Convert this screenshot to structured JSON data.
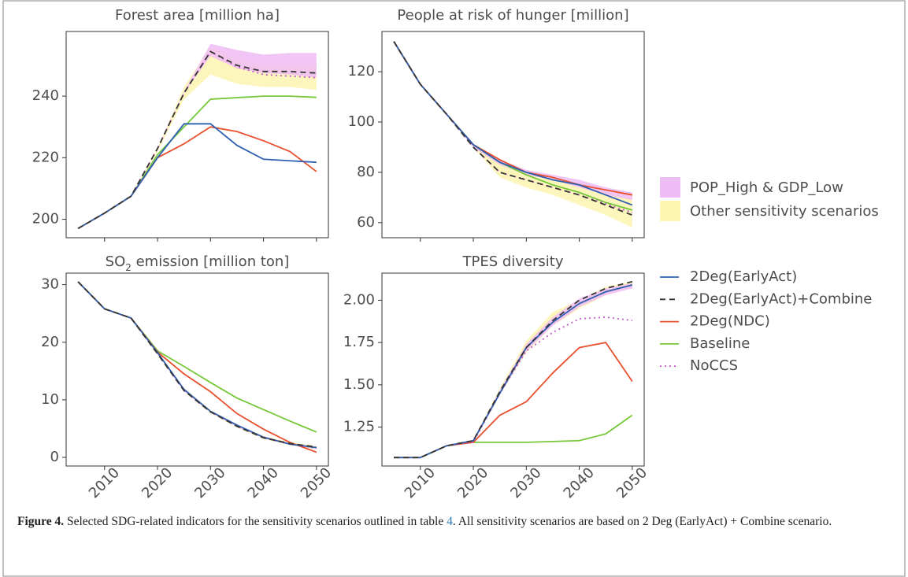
{
  "chart_data": [
    {
      "type": "line",
      "title": "Forest area [million ha]",
      "x": [
        2005,
        2010,
        2015,
        2020,
        2025,
        2030,
        2035,
        2040,
        2045,
        2050
      ],
      "xlim": [
        2002.75,
        2052.25
      ],
      "xticks": [
        2010,
        2020,
        2030,
        2040,
        2050
      ],
      "ylim": [
        194,
        261
      ],
      "yticks": [
        200,
        220,
        240
      ],
      "bands": [
        {
          "lower": [
            197,
            202,
            207.5,
            223,
            241,
            253,
            249,
            247.5,
            247,
            246
          ],
          "upper": [
            197,
            202,
            207.5,
            223,
            241.5,
            257,
            255,
            253.5,
            254,
            254
          ]
        },
        {
          "lower": [
            197,
            202,
            207.5,
            222,
            239,
            247,
            244,
            243,
            243,
            242
          ],
          "upper": [
            197,
            202,
            207.5,
            223,
            243,
            256,
            252,
            250,
            250,
            250
          ]
        }
      ],
      "series": [
        {
          "values": [
            197,
            202,
            207.5,
            220,
            231,
            231,
            224,
            219.5,
            219,
            218.5
          ]
        },
        {
          "values": [
            197,
            202,
            207.5,
            223,
            241,
            254.5,
            250,
            248,
            248,
            247.5
          ]
        },
        {
          "values": [
            197,
            202,
            207.5,
            220,
            224.5,
            230,
            228.5,
            225.5,
            222,
            215.5
          ]
        },
        {
          "values": [
            197,
            202,
            207.5,
            221,
            230,
            239,
            239.5,
            240,
            240,
            239.6
          ]
        },
        {
          "values": [
            197,
            202,
            207.5,
            223,
            241,
            254.5,
            249.5,
            247,
            246.5,
            246
          ]
        }
      ]
    },
    {
      "type": "line",
      "title": "People at risk of hunger [million]",
      "x": [
        2005,
        2010,
        2015,
        2020,
        2025,
        2030,
        2035,
        2040,
        2045,
        2050
      ],
      "xlim": [
        2002.75,
        2052.25
      ],
      "xticks": [
        2010,
        2020,
        2030,
        2040,
        2050
      ],
      "ylim": [
        54,
        136
      ],
      "yticks": [
        60,
        80,
        100,
        120
      ],
      "bands": [
        {
          "lower": [
            132,
            115,
            103,
            90,
            83,
            79,
            77,
            74,
            71,
            69
          ],
          "upper": [
            132,
            115,
            103,
            91,
            85,
            81,
            79,
            77,
            74,
            72
          ]
        },
        {
          "lower": [
            132,
            115,
            103,
            90,
            78,
            74,
            71,
            67,
            63,
            58
          ],
          "upper": [
            132,
            115,
            103,
            91,
            84,
            80,
            78,
            75,
            72,
            70
          ]
        }
      ],
      "series": [
        {
          "values": [
            132,
            115,
            103,
            91,
            84,
            80,
            77,
            75,
            71,
            67
          ]
        },
        {
          "values": [
            132,
            115,
            103,
            90,
            80,
            77,
            74,
            71,
            67,
            63
          ]
        },
        {
          "values": [
            132,
            115,
            103,
            91,
            85,
            80,
            78,
            75,
            73,
            71
          ]
        },
        {
          "values": [
            132,
            115,
            103,
            91,
            84,
            79,
            75,
            72,
            68,
            65
          ]
        },
        {
          "values": [
            132,
            115,
            103,
            90,
            80,
            77,
            74,
            71,
            67.5,
            64
          ]
        }
      ]
    },
    {
      "type": "line",
      "title": [
        {
          "text": "SO"
        },
        {
          "text": "2",
          "sub": true
        },
        {
          "text": " emission [million ton]"
        }
      ],
      "x": [
        2005,
        2010,
        2015,
        2020,
        2025,
        2030,
        2035,
        2040,
        2045,
        2050
      ],
      "xlim": [
        2002.75,
        2052.25
      ],
      "xticks": [
        2010,
        2020,
        2030,
        2040,
        2050
      ],
      "ylim": [
        -1.5,
        32
      ],
      "yticks": [
        0,
        10,
        20,
        30
      ],
      "bands": [
        {
          "lower": [
            30.5,
            25.8,
            24.2,
            17.9,
            11.5,
            7.8,
            5.3,
            3.3,
            2.2,
            1.5
          ],
          "upper": [
            30.5,
            25.8,
            24.2,
            18.2,
            11.9,
            8.1,
            5.6,
            3.6,
            2.5,
            1.9
          ]
        },
        {
          "lower": [
            30.5,
            25.8,
            24.2,
            17.8,
            11.4,
            7.7,
            5.2,
            3.2,
            2.1,
            1.4
          ],
          "upper": [
            30.5,
            25.8,
            24.2,
            18.2,
            12.0,
            8.2,
            5.7,
            3.7,
            2.6,
            2.0
          ]
        }
      ],
      "series": [
        {
          "values": [
            30.5,
            25.8,
            24.2,
            18.2,
            11.8,
            8.0,
            5.6,
            3.5,
            2.3,
            1.7
          ]
        },
        {
          "values": [
            30.5,
            25.8,
            24.2,
            18.0,
            11.6,
            7.9,
            5.4,
            3.4,
            2.4,
            1.8
          ]
        },
        {
          "values": [
            30.5,
            25.8,
            24.2,
            18.3,
            14.5,
            11.4,
            7.6,
            4.9,
            2.6,
            0.9
          ]
        },
        {
          "values": [
            30.5,
            25.8,
            24.2,
            18.5,
            15.8,
            13.0,
            10.3,
            8.3,
            6.3,
            4.4
          ]
        },
        {
          "values": [
            30.5,
            25.8,
            24.2,
            18.0,
            11.6,
            7.9,
            5.4,
            3.4,
            2.3,
            1.6
          ]
        }
      ]
    },
    {
      "type": "line",
      "title": "TPES diversity",
      "x": [
        2005,
        2010,
        2015,
        2020,
        2025,
        2030,
        2035,
        2040,
        2045,
        2050
      ],
      "xlim": [
        2002.75,
        2052.25
      ],
      "xticks": [
        2010,
        2020,
        2030,
        2040,
        2050
      ],
      "ylim": [
        1.02,
        2.16
      ],
      "yticks": [
        1.25,
        {
          "value": 1.5,
          "label": "1.50"
        },
        1.75,
        {
          "value": 2,
          "label": "2.00"
        }
      ],
      "bands": [
        {
          "lower": [
            1.07,
            1.07,
            1.14,
            1.16,
            1.44,
            1.7,
            1.85,
            1.96,
            2.03,
            2.07
          ],
          "upper": [
            1.07,
            1.07,
            1.14,
            1.17,
            1.47,
            1.74,
            1.9,
            2.01,
            2.07,
            2.1
          ]
        },
        {
          "lower": [
            1.07,
            1.07,
            1.14,
            1.16,
            1.44,
            1.69,
            1.85,
            1.95,
            2.03,
            2.08
          ],
          "upper": [
            1.07,
            1.07,
            1.14,
            1.17,
            1.48,
            1.76,
            1.93,
            2.0,
            2.08,
            2.11
          ]
        }
      ],
      "series": [
        {
          "values": [
            1.07,
            1.07,
            1.14,
            1.17,
            1.45,
            1.72,
            1.87,
            1.98,
            2.05,
            2.09
          ]
        },
        {
          "values": [
            1.07,
            1.07,
            1.14,
            1.17,
            1.46,
            1.72,
            1.88,
            2.0,
            2.07,
            2.11
          ]
        },
        {
          "values": [
            1.07,
            1.07,
            1.14,
            1.16,
            1.32,
            1.4,
            1.57,
            1.72,
            1.75,
            1.52
          ]
        },
        {
          "values": [
            1.07,
            1.07,
            1.14,
            1.16,
            1.16,
            1.16,
            1.165,
            1.17,
            1.21,
            1.32
          ]
        },
        {
          "values": [
            1.07,
            1.07,
            1.14,
            1.16,
            1.45,
            1.7,
            1.81,
            1.89,
            1.9,
            1.88
          ]
        }
      ]
    }
  ],
  "legend": {
    "bands": [
      {
        "name": "POP_High & GDP_Low",
        "color": "#eebcf5"
      },
      {
        "name": "Other sensitivity scenarios",
        "color": "#fdf5b0"
      }
    ],
    "lines": [
      {
        "name": "2Deg(EarlyAct)",
        "color": "#2f5fb0",
        "dash": "solid"
      },
      {
        "name": "2Deg(EarlyAct)+Combine",
        "color": "#333333",
        "dash": "dashed"
      },
      {
        "name": "2Deg(NDC)",
        "color": "#e8502e",
        "dash": "solid"
      },
      {
        "name": "Baseline",
        "color": "#76c83a",
        "dash": "solid"
      },
      {
        "name": "NoCCS",
        "color": "#c05ac8",
        "dash": "dotted"
      }
    ]
  },
  "caption": {
    "label": "Figure 4.",
    "text_before": "Selected SDG-related indicators for the sensitivity scenarios outlined in table",
    "table_ref": "4",
    "text_after": ". All sensitivity scenarios are based on 2 Deg (EarlyAct) + Combine scenario."
  }
}
